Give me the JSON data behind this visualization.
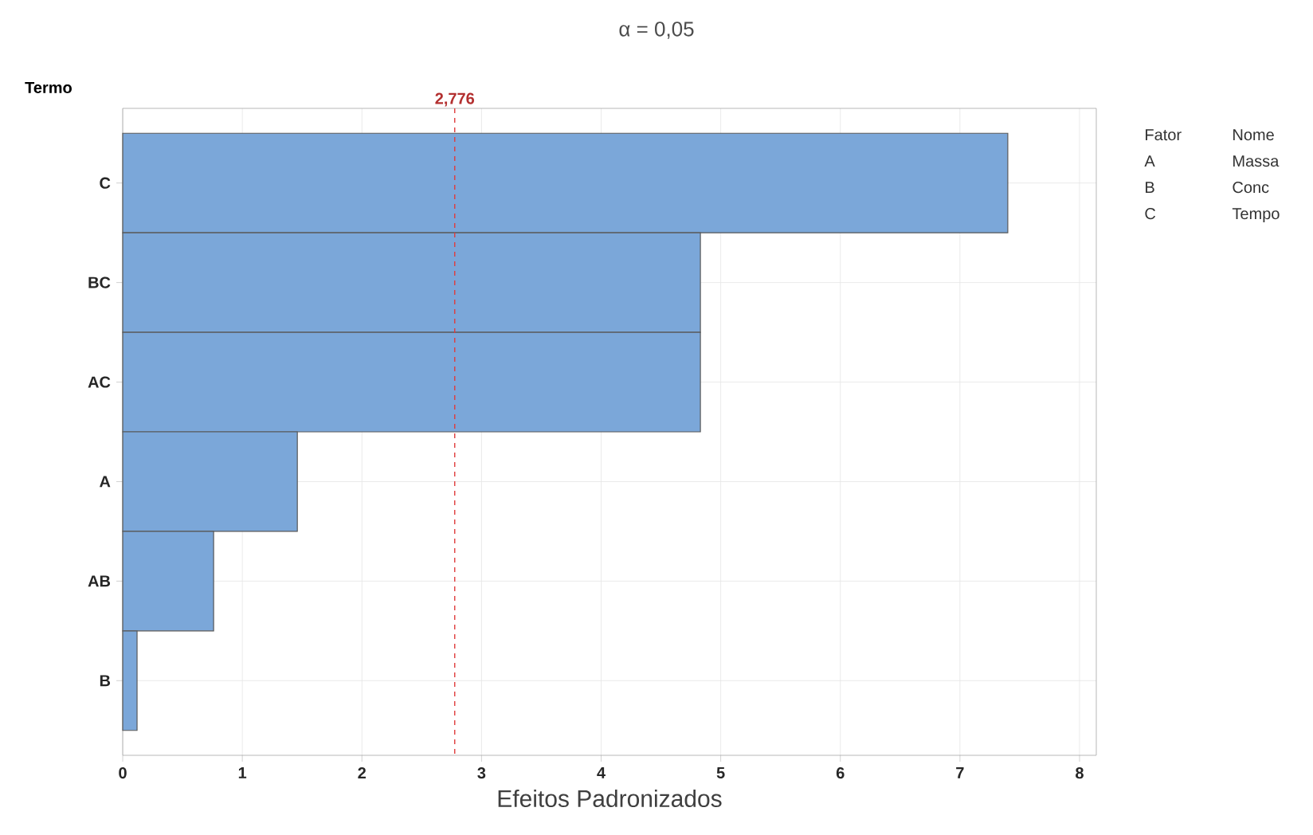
{
  "chart_data": {
    "type": "bar",
    "orientation": "horizontal",
    "title": "α = 0,05",
    "xlabel": "Efeitos Padronizados",
    "ylabel": "Termo",
    "categories": [
      "C",
      "BC",
      "AC",
      "A",
      "AB",
      "B"
    ],
    "values": [
      7.4,
      4.83,
      4.83,
      1.46,
      0.76,
      0.12
    ],
    "color": "#7ba7d9",
    "xlim": [
      0,
      8.14
    ],
    "xticks": [
      0,
      1,
      2,
      3,
      4,
      5,
      6,
      7,
      8
    ],
    "grid": true,
    "ref_lines": [
      {
        "axis": "x",
        "value": 2.776,
        "label": "2,776",
        "color": "#e03c3c",
        "line_style": "dashed"
      }
    ],
    "annotations": [
      "Fator",
      "Nome",
      "A",
      "Massa",
      "B",
      "Conc",
      "C",
      "Tempo"
    ]
  }
}
